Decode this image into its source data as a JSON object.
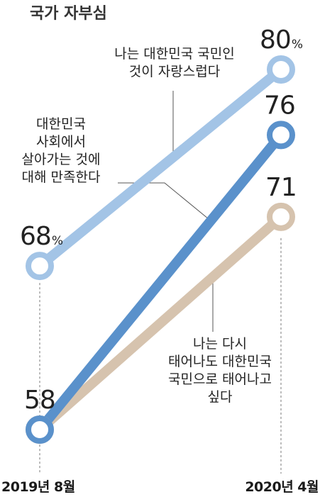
{
  "chart_data": {
    "type": "line",
    "title": "국가 자부심",
    "categories": [
      "2019년 8월",
      "2020년 4월"
    ],
    "ylim": [
      50,
      85
    ],
    "series": [
      {
        "label_lines": [
          "나는 대한민국 국민인",
          "것이 자랑스럽다"
        ],
        "values": [
          68,
          80
        ],
        "value_labels": [
          "68",
          "80"
        ],
        "percent_marks": [
          "%",
          "%"
        ],
        "color": "#a3c4e6"
      },
      {
        "label_lines": [
          "대한민국",
          "사회에서",
          "살아가는 것에",
          "대해 만족한다"
        ],
        "values": [
          58,
          76
        ],
        "value_labels": [
          "",
          "76"
        ],
        "percent_marks": [
          "",
          ""
        ],
        "color": "#5a91cb"
      },
      {
        "label_lines": [
          "나는 다시",
          "태어나도 대한민국",
          "국민으로 태어나고",
          "싶다"
        ],
        "values": [
          58,
          71
        ],
        "value_labels": [
          "58",
          "71"
        ],
        "percent_marks": [
          "",
          ""
        ],
        "color": "#d6c3ae"
      }
    ]
  }
}
